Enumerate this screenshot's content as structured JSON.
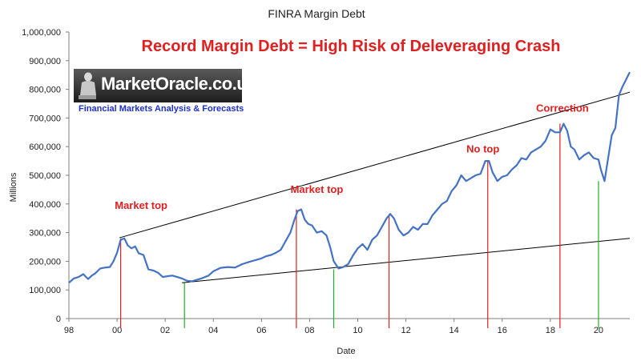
{
  "chart_data": {
    "type": "line",
    "title": "FINRA Margin Debt",
    "headline": "Record Margin Debt  = High Risk of Deleveraging Crash",
    "xlabel": "Date",
    "ylabel": "Millions",
    "xlim": [
      1998,
      2021.3
    ],
    "ylim": [
      0,
      1000000
    ],
    "x_ticks": [
      {
        "value": 1998,
        "label": "98"
      },
      {
        "value": 2000,
        "label": "00"
      },
      {
        "value": 2002,
        "label": "02"
      },
      {
        "value": 2004,
        "label": "04"
      },
      {
        "value": 2006,
        "label": "06"
      },
      {
        "value": 2008,
        "label": "08"
      },
      {
        "value": 2010,
        "label": "10"
      },
      {
        "value": 2012,
        "label": "12"
      },
      {
        "value": 2014,
        "label": "14"
      },
      {
        "value": 2016,
        "label": "16"
      },
      {
        "value": 2018,
        "label": "18"
      },
      {
        "value": 2020,
        "label": "20"
      }
    ],
    "y_ticks": [
      {
        "value": 0,
        "label": "0"
      },
      {
        "value": 100000,
        "label": "100,000"
      },
      {
        "value": 200000,
        "label": "200,000"
      },
      {
        "value": 300000,
        "label": "300,000"
      },
      {
        "value": 400000,
        "label": "400,000"
      },
      {
        "value": 500000,
        "label": "500,000"
      },
      {
        "value": 600000,
        "label": "600,000"
      },
      {
        "value": 700000,
        "label": "700,000"
      },
      {
        "value": 800000,
        "label": "800,000"
      },
      {
        "value": 900000,
        "label": "900,000"
      },
      {
        "value": 1000000,
        "label": "1,000,000"
      }
    ],
    "grid": false,
    "series": [
      {
        "color": "#4472c4",
        "x": [
          1998.0,
          1998.2,
          1998.4,
          1998.6,
          1998.8,
          1998.95,
          1999.1,
          1999.3,
          1999.5,
          1999.7,
          1999.85,
          2000.0,
          2000.15,
          2000.3,
          2000.45,
          2000.6,
          2000.75,
          2000.9,
          2001.1,
          2001.3,
          2001.5,
          2001.7,
          2001.9,
          2002.1,
          2002.3,
          2002.5,
          2002.7,
          2002.9,
          2003.1,
          2003.3,
          2003.5,
          2003.8,
          2004.0,
          2004.3,
          2004.6,
          2004.9,
          2005.2,
          2005.5,
          2005.8,
          2006.0,
          2006.2,
          2006.4,
          2006.6,
          2006.8,
          2007.0,
          2007.2,
          2007.35,
          2007.5,
          2007.65,
          2007.8,
          2007.95,
          2008.1,
          2008.3,
          2008.5,
          2008.7,
          2008.85,
          2009.0,
          2009.2,
          2009.4,
          2009.6,
          2009.8,
          2010.0,
          2010.2,
          2010.4,
          2010.6,
          2010.8,
          2011.0,
          2011.2,
          2011.35,
          2011.5,
          2011.7,
          2011.9,
          2012.1,
          2012.3,
          2012.5,
          2012.7,
          2012.9,
          2013.1,
          2013.3,
          2013.5,
          2013.7,
          2013.9,
          2014.1,
          2014.3,
          2014.5,
          2014.7,
          2014.9,
          2015.1,
          2015.3,
          2015.45,
          2015.6,
          2015.8,
          2016.0,
          2016.2,
          2016.4,
          2016.6,
          2016.8,
          2017.0,
          2017.2,
          2017.4,
          2017.6,
          2017.8,
          2018.0,
          2018.2,
          2018.4,
          2018.55,
          2018.7,
          2018.85,
          2019.0,
          2019.2,
          2019.4,
          2019.6,
          2019.8,
          2020.0,
          2020.1,
          2020.25,
          2020.4,
          2020.55,
          2020.7,
          2020.85,
          2021.0,
          2021.15,
          2021.3
        ],
        "y": [
          125000,
          140000,
          145000,
          155000,
          138000,
          150000,
          158000,
          175000,
          178000,
          180000,
          200000,
          230000,
          275000,
          280000,
          255000,
          245000,
          252000,
          228000,
          222000,
          172000,
          168000,
          160000,
          145000,
          148000,
          150000,
          145000,
          140000,
          132000,
          130000,
          135000,
          140000,
          150000,
          165000,
          177000,
          180000,
          178000,
          190000,
          198000,
          205000,
          210000,
          218000,
          222000,
          230000,
          240000,
          270000,
          300000,
          340000,
          375000,
          381000,
          345000,
          330000,
          325000,
          300000,
          305000,
          290000,
          250000,
          200000,
          175000,
          180000,
          190000,
          220000,
          245000,
          260000,
          240000,
          275000,
          290000,
          320000,
          350000,
          365000,
          350000,
          310000,
          290000,
          300000,
          320000,
          310000,
          330000,
          330000,
          360000,
          380000,
          400000,
          410000,
          445000,
          465000,
          500000,
          480000,
          490000,
          500000,
          505000,
          550000,
          550000,
          510000,
          480000,
          495000,
          500000,
          520000,
          535000,
          560000,
          555000,
          580000,
          590000,
          600000,
          620000,
          660000,
          650000,
          650000,
          680000,
          655000,
          600000,
          590000,
          555000,
          570000,
          580000,
          560000,
          555000,
          520000,
          480000,
          560000,
          640000,
          665000,
          780000,
          810000,
          835000,
          860000
        ]
      }
    ],
    "trendlines": [
      {
        "x": [
          2000.1,
          2021.3
        ],
        "y": [
          282000,
          790000
        ],
        "color": "#000000"
      },
      {
        "x": [
          2002.7,
          2021.3
        ],
        "y": [
          125000,
          280000
        ],
        "color": "#000000"
      }
    ],
    "vertical_markers": [
      {
        "x": 2000.15,
        "y": 280000,
        "kind": "top",
        "color": "#e02020"
      },
      {
        "x": 2002.8,
        "y": 125000,
        "kind": "bottom",
        "color": "#22b022"
      },
      {
        "x": 2007.45,
        "y": 381000,
        "kind": "top",
        "color": "#e02020"
      },
      {
        "x": 2009.0,
        "y": 172000,
        "kind": "bottom",
        "color": "#22b022"
      },
      {
        "x": 2011.3,
        "y": 365000,
        "kind": "top",
        "color": "#e02020"
      },
      {
        "x": 2015.4,
        "y": 548000,
        "kind": "top",
        "color": "#e02020"
      },
      {
        "x": 2018.4,
        "y": 680000,
        "kind": "top",
        "color": "#e02020"
      },
      {
        "x": 2020.0,
        "y": 480000,
        "kind": "bottom",
        "color": "#22b022"
      }
    ],
    "annotations": [
      {
        "text": "Market top",
        "x": 2001.0,
        "y": 383000,
        "color": "#e02020"
      },
      {
        "text": "Market top",
        "x": 2008.3,
        "y": 438000,
        "color": "#e02020"
      },
      {
        "text": "No top",
        "x": 2015.2,
        "y": 580000,
        "color": "#e02020"
      },
      {
        "text": "Correction",
        "x": 2018.5,
        "y": 722000,
        "color": "#e02020"
      }
    ],
    "headline_color": "#e02020",
    "axis_color": "#7f7f7f"
  },
  "logo": {
    "name": "MarketOracle.co.uk",
    "tagline": "Financial Markets Analysis & Forecasts"
  }
}
